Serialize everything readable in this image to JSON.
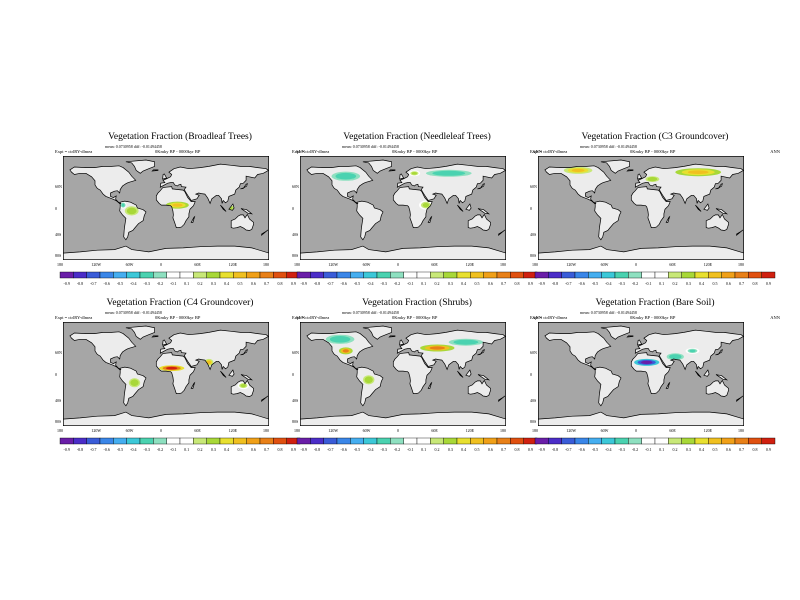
{
  "figure": {
    "expt_label": "Expt = ctrlRY-dlmea",
    "period_label": "0Kmky BP - 0000kyr BP",
    "season": "ANN",
    "lon_ticks": [
      "180",
      "120W",
      "60W",
      "0",
      "60E",
      "120E",
      "180"
    ],
    "lat_ticks": [
      "60N",
      "0",
      "40S",
      "80S"
    ]
  },
  "panels": [
    {
      "title": "Vegetation Fraction (Broadleaf Trees)",
      "mean_label": "mean: 0.0730958 diff: -0.01494458",
      "colorbar_labels": [
        "-0.9",
        "-0.8",
        "-0.7",
        "-0.6",
        "-0.5",
        "-0.4",
        "-0.3",
        "-0.2",
        "-0.1",
        "0.1",
        "0.2",
        "0.3",
        "0.4",
        "0.5",
        "0.6",
        "0.7",
        "0.8",
        "0.9"
      ],
      "hotspots": [
        {
          "lon": 20,
          "lat": 5,
          "value": 0.5,
          "spread_lon": 20,
          "spread_lat": 6
        },
        {
          "lon": -60,
          "lat": -5,
          "value": 0.3,
          "spread_lon": 12,
          "spread_lat": 8
        },
        {
          "lon": 110,
          "lat": 0,
          "value": 0.2,
          "spread_lon": 15,
          "spread_lat": 6
        },
        {
          "lon": -75,
          "lat": 5,
          "value": -0.2,
          "spread_lon": 6,
          "spread_lat": 6
        }
      ]
    },
    {
      "title": "Vegetation Fraction (Needleleaf Trees)",
      "mean_label": "mean: 0.0730958 diff: -0.01494458",
      "colorbar_labels": [
        "-0.9",
        "-0.8",
        "-0.7",
        "-0.6",
        "-0.5",
        "-0.4",
        "-0.3",
        "-0.2",
        "-0.1",
        "0.1",
        "0.2",
        "0.3",
        "0.4",
        "0.5",
        "0.6",
        "0.7",
        "0.8",
        "0.9"
      ],
      "hotspots": [
        {
          "lon": -100,
          "lat": 55,
          "value": -0.3,
          "spread_lon": 25,
          "spread_lat": 8
        },
        {
          "lon": 80,
          "lat": 60,
          "value": -0.3,
          "spread_lon": 40,
          "spread_lat": 6
        },
        {
          "lon": 20,
          "lat": 60,
          "value": 0.2,
          "spread_lon": 10,
          "spread_lat": 5
        },
        {
          "lon": 40,
          "lat": 5,
          "value": 0.2,
          "spread_lon": 12,
          "spread_lat": 8
        }
      ]
    },
    {
      "title": "Vegetation Fraction (C3 Groundcover)",
      "mean_label": "mean: 0.0730958 diff: -0.01494458",
      "colorbar_labels": [
        "-0.9",
        "-0.8",
        "-0.7",
        "-0.6",
        "-0.5",
        "-0.4",
        "-0.3",
        "-0.2",
        "-0.1",
        "0.1",
        "0.2",
        "0.3",
        "0.4",
        "0.5",
        "0.6",
        "0.7",
        "0.8",
        "0.9"
      ],
      "hotspots": [
        {
          "lon": -110,
          "lat": 65,
          "value": 0.4,
          "spread_lon": 25,
          "spread_lat": 6
        },
        {
          "lon": 100,
          "lat": 62,
          "value": 0.5,
          "spread_lon": 40,
          "spread_lat": 7
        },
        {
          "lon": 20,
          "lat": 50,
          "value": 0.3,
          "spread_lon": 12,
          "spread_lat": 5
        }
      ]
    },
    {
      "title": "Vegetation Fraction (C4 Groundcover)",
      "mean_label": "mean: 0.0730958 diff: -0.01494458",
      "colorbar_labels": [
        "-0.9",
        "-0.8",
        "-0.7",
        "-0.6",
        "-0.5",
        "-0.4",
        "-0.3",
        "-0.2",
        "-0.1",
        "0.1",
        "0.2",
        "0.3",
        "0.4",
        "0.5",
        "0.6",
        "0.7",
        "0.8",
        "0.9"
      ],
      "hotspots": [
        {
          "lon": 10,
          "lat": 10,
          "value": 0.8,
          "spread_lon": 22,
          "spread_lat": 5
        },
        {
          "lon": 75,
          "lat": 20,
          "value": 0.4,
          "spread_lon": 8,
          "spread_lat": 6
        },
        {
          "lon": -55,
          "lat": -15,
          "value": 0.3,
          "spread_lon": 10,
          "spread_lat": 8
        },
        {
          "lon": 135,
          "lat": -20,
          "value": 0.2,
          "spread_lon": 10,
          "spread_lat": 6
        }
      ]
    },
    {
      "title": "Vegetation Fraction (Shrubs)",
      "mean_label": "mean: 0.0730958 diff: -0.01494458",
      "colorbar_labels": [
        "-0.9",
        "-0.8",
        "-0.7",
        "-0.6",
        "-0.5",
        "-0.4",
        "-0.3",
        "-0.2",
        "-0.1",
        "0.1",
        "0.2",
        "0.3",
        "0.4",
        "0.5",
        "0.6",
        "0.7",
        "0.8",
        "0.9"
      ],
      "hotspots": [
        {
          "lon": -110,
          "lat": 60,
          "value": -0.3,
          "spread_lon": 25,
          "spread_lat": 8
        },
        {
          "lon": -100,
          "lat": 40,
          "value": 0.6,
          "spread_lon": 12,
          "spread_lat": 6
        },
        {
          "lon": 60,
          "lat": 45,
          "value": 0.6,
          "spread_lon": 30,
          "spread_lat": 6
        },
        {
          "lon": 110,
          "lat": 55,
          "value": -0.3,
          "spread_lon": 30,
          "spread_lat": 6
        },
        {
          "lon": -60,
          "lat": -10,
          "value": 0.3,
          "spread_lon": 10,
          "spread_lat": 8
        }
      ]
    },
    {
      "title": "Vegetation Fraction (Bare Soil)",
      "mean_label": "mean: 0.0730958 diff: -0.01494458",
      "colorbar_labels": [
        "-0.9",
        "-0.8",
        "-0.7",
        "-0.6",
        "-0.5",
        "-0.4",
        "-0.3",
        "-0.2",
        "-0.1",
        "0.1",
        "0.2",
        "0.3",
        "0.4",
        "0.5",
        "0.6",
        "0.7",
        "0.8",
        "0.9"
      ],
      "hotspots": [
        {
          "lon": 10,
          "lat": 20,
          "value": -0.8,
          "spread_lon": 22,
          "spread_lat": 6
        },
        {
          "lon": 60,
          "lat": 30,
          "value": -0.3,
          "spread_lon": 15,
          "spread_lat": 6
        },
        {
          "lon": 90,
          "lat": 40,
          "value": -0.2,
          "spread_lon": 12,
          "spread_lat": 5
        }
      ]
    }
  ],
  "colors": {
    "ocean": "#a6a6a6",
    "land": "#ececec",
    "coast": "#000000",
    "palette": [
      "#6a1ea8",
      "#4b2dc8",
      "#3a5cd8",
      "#3a86e8",
      "#45aef0",
      "#3cc8d8",
      "#4ad2b0",
      "#8ee0c0",
      "#ffffff",
      "#ffffff",
      "#c8e878",
      "#a8d838",
      "#e8e030",
      "#f0c020",
      "#f0a018",
      "#e88018",
      "#e05010",
      "#d02010"
    ]
  }
}
